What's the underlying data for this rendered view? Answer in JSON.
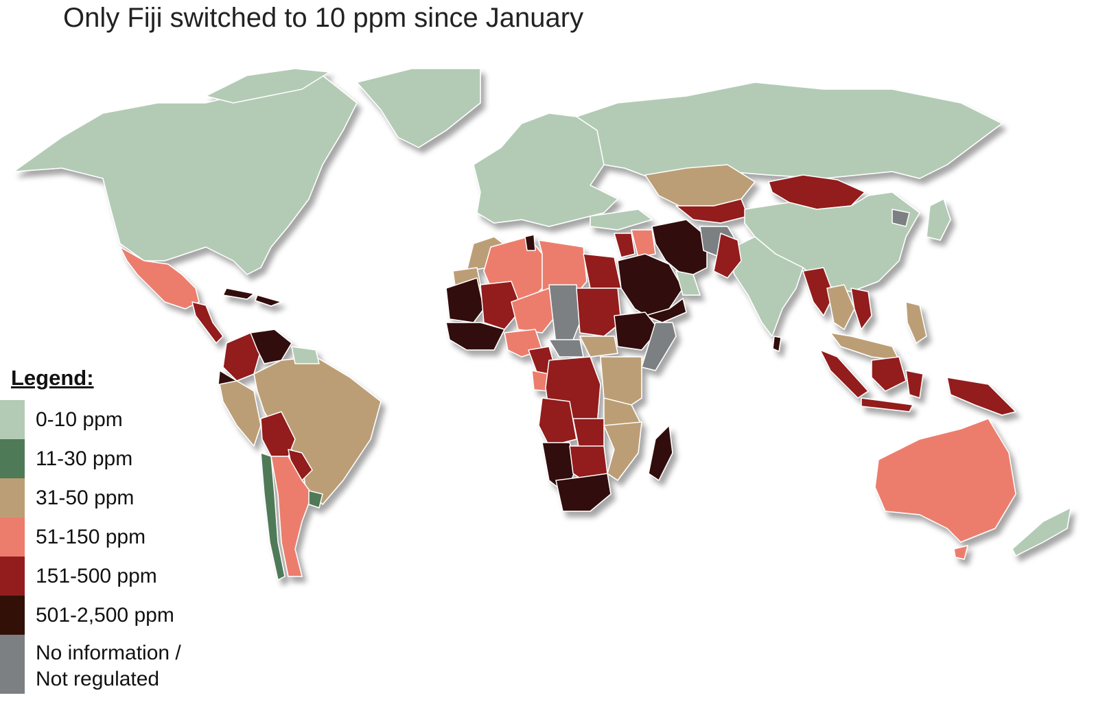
{
  "title": "Only Fiji switched to 10 ppm since January",
  "legend": {
    "heading": "Legend:",
    "items": [
      {
        "label": "0-10 ppm",
        "color": "#b3cbb5"
      },
      {
        "label": "11-30 ppm",
        "color": "#4f7a58"
      },
      {
        "label": "31-50 ppm",
        "color": "#bc9e76"
      },
      {
        "label": "51-150 ppm",
        "color": "#ec7d6d"
      },
      {
        "label": "151-500 ppm",
        "color": "#931d1d"
      },
      {
        "label": "501-2,500 ppm",
        "color": "#321008"
      },
      {
        "label": "No information / Not regulated",
        "color": "#7c8083"
      }
    ]
  }
}
